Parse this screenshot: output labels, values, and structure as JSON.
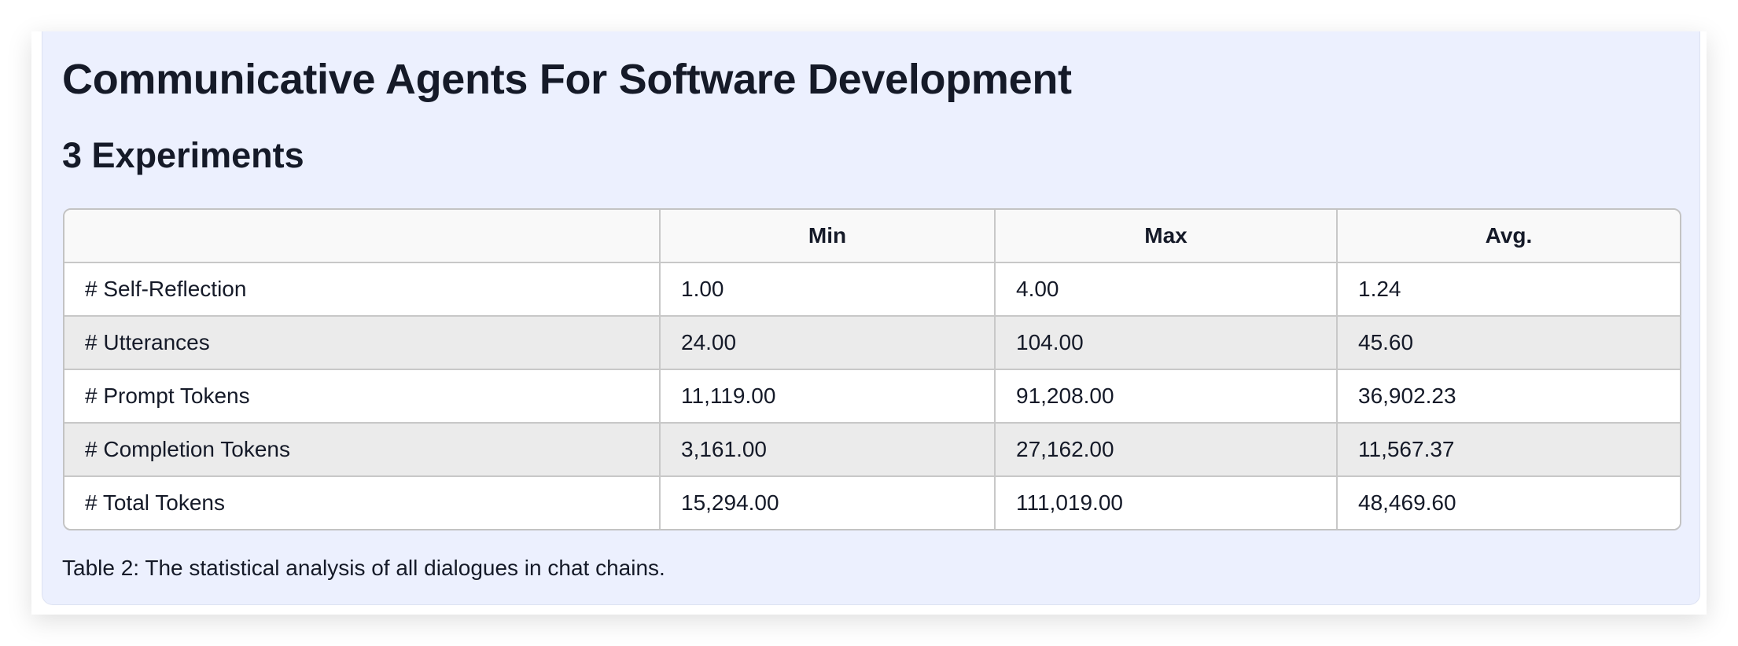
{
  "title": "Communicative Agents For Software Development",
  "section": "3 Experiments",
  "table": {
    "headers": [
      "",
      "Min",
      "Max",
      "Avg."
    ],
    "rows": [
      [
        "# Self-Reflection",
        "1.00",
        "4.00",
        "1.24"
      ],
      [
        "# Utterances",
        "24.00",
        "104.00",
        "45.60"
      ],
      [
        "# Prompt Tokens",
        "11,119.00",
        "91,208.00",
        "36,902.23"
      ],
      [
        "# Completion Tokens",
        "3,161.00",
        "27,162.00",
        "11,567.37"
      ],
      [
        "# Total Tokens",
        "15,294.00",
        "111,019.00",
        "48,469.60"
      ]
    ]
  },
  "caption": "Table 2: The statistical analysis of all dialogues in chat chains."
}
